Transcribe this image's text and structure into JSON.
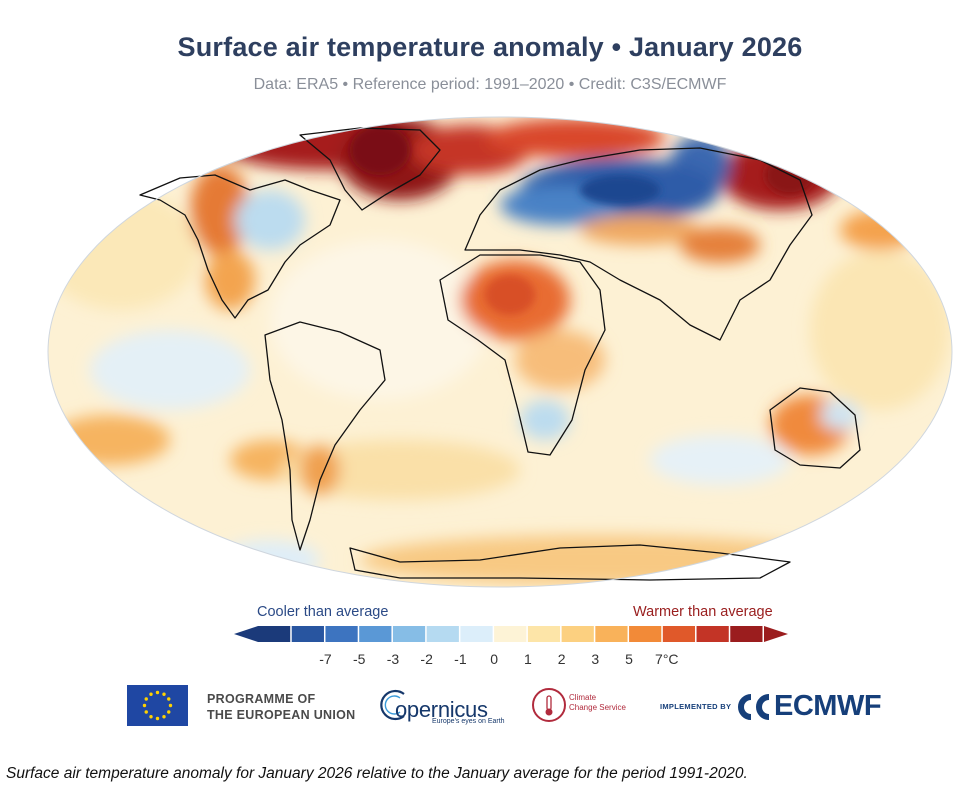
{
  "header": {
    "title": "Surface air temperature anomaly • January 2026",
    "subtitle": "Data: ERA5 • Reference period: 1991–2020 • Credit: C3S/ECMWF"
  },
  "legend": {
    "cooler_label": "Cooler than average",
    "warmer_label": "Warmer than average",
    "ticks": [
      "-7",
      "-5",
      "-3",
      "-2",
      "-1",
      "0",
      "1",
      "2",
      "3",
      "5",
      "7°C"
    ],
    "colors": [
      "#1b3a7a",
      "#2855a0",
      "#3d74c0",
      "#5a98d6",
      "#86bde6",
      "#b5daf1",
      "#dceefa",
      "#fdf3d6",
      "#fde5a8",
      "#fcd080",
      "#f9b25a",
      "#f28a38",
      "#e0592a",
      "#c33426",
      "#9b1d1e"
    ]
  },
  "logos": {
    "eu_line1": "PROGRAMME OF",
    "eu_line2": "THE EUROPEAN UNION",
    "copernicus_name": "opernicus",
    "copernicus_tagline": "Europe's eyes on Earth",
    "c3s_line1": "Climate",
    "c3s_line2": "Change Service",
    "implemented_by": "IMPLEMENTED BY",
    "ecmwf": "ECMWF"
  },
  "caption": "Surface air temperature anomaly for January 2026 relative to the January average for the period 1991-2020.",
  "map_regions": [
    {
      "name": "Greenland / Arctic Canada",
      "anomaly": "warm",
      "color": "#9b1d1e"
    },
    {
      "name": "Northern Europe / Siberia",
      "anomaly": "cold",
      "color": "#2855a0"
    },
    {
      "name": "Eastern Siberia",
      "anomaly": "warm",
      "color": "#9b1d1e"
    },
    {
      "name": "North Africa / Sahel",
      "anomaly": "warm",
      "color": "#e0592a"
    },
    {
      "name": "Australia",
      "anomaly": "warm",
      "color": "#f28a38"
    }
  ]
}
